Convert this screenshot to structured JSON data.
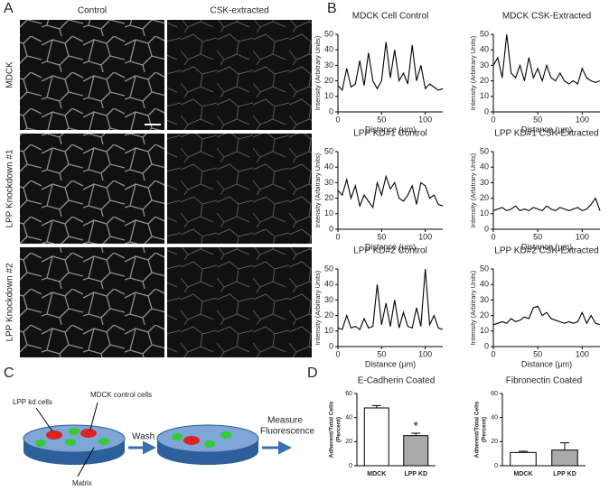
{
  "figure": {
    "panel_labels": [
      "A",
      "B",
      "C",
      "D"
    ],
    "micrographs": {
      "columns": [
        "Control",
        "CSK-extracted"
      ],
      "rows": [
        "MDCK",
        "LPP Knockdown #1",
        "LPP Knockdown #2"
      ]
    },
    "schematic": {
      "labels": [
        "LPP kd cells",
        "MDCK control cells",
        "Matrix",
        "Wash",
        "Measure",
        "Fluorescence"
      ]
    }
  },
  "chart_data": [
    {
      "type": "line",
      "title": "MDCK Cell Control",
      "x_label": "Distance (µm)",
      "y_label": "Intensity (Arbitrary Units)",
      "xlim": [
        0,
        120
      ],
      "xticks": [
        0,
        50,
        100
      ],
      "ylim": [
        0,
        50
      ],
      "yticks": [
        0,
        10,
        20,
        30,
        40,
        50
      ],
      "x": [
        0,
        5,
        10,
        15,
        20,
        25,
        30,
        35,
        40,
        45,
        50,
        55,
        60,
        65,
        70,
        75,
        80,
        85,
        90,
        95,
        100,
        105,
        110,
        115,
        120
      ],
      "series": [
        {
          "color": "#000000",
          "values": [
            17,
            14,
            28,
            16,
            18,
            33,
            17,
            38,
            20,
            15,
            20,
            45,
            22,
            40,
            20,
            25,
            18,
            43,
            20,
            30,
            15,
            18,
            16,
            14,
            15
          ]
        }
      ]
    },
    {
      "type": "line",
      "title": "MDCK CSK-Extracted",
      "x_label": "Distance (µm)",
      "y_label": "Intensity (Arbitrary Units)",
      "xlim": [
        0,
        120
      ],
      "xticks": [
        0,
        50,
        100
      ],
      "ylim": [
        0,
        50
      ],
      "yticks": [
        0,
        10,
        20,
        30,
        40,
        50
      ],
      "x": [
        0,
        5,
        10,
        15,
        20,
        25,
        30,
        35,
        40,
        45,
        50,
        55,
        60,
        65,
        70,
        75,
        80,
        85,
        90,
        95,
        100,
        105,
        110,
        115,
        120
      ],
      "series": [
        {
          "color": "#000000",
          "values": [
            30,
            35,
            22,
            50,
            25,
            22,
            30,
            20,
            35,
            22,
            28,
            20,
            30,
            22,
            20,
            25,
            20,
            18,
            20,
            18,
            28,
            22,
            20,
            19,
            20
          ]
        }
      ]
    },
    {
      "type": "line",
      "title": "LPP KD#1  Control",
      "x_label": "Distance (µm)",
      "y_label": "Intensity (Arbitrary Units)",
      "xlim": [
        0,
        120
      ],
      "xticks": [
        0,
        50,
        100
      ],
      "ylim": [
        0,
        50
      ],
      "yticks": [
        0,
        10,
        20,
        30,
        40,
        50
      ],
      "x": [
        0,
        5,
        10,
        15,
        20,
        25,
        30,
        35,
        40,
        45,
        50,
        55,
        60,
        65,
        70,
        75,
        80,
        85,
        90,
        95,
        100,
        105,
        110,
        115,
        120
      ],
      "series": [
        {
          "color": "#000000",
          "values": [
            25,
            22,
            32,
            20,
            28,
            15,
            22,
            18,
            14,
            30,
            22,
            34,
            26,
            30,
            20,
            18,
            22,
            28,
            16,
            30,
            28,
            20,
            22,
            16,
            15
          ]
        }
      ]
    },
    {
      "type": "line",
      "title": "LPP KD#1 CSK-Extracted",
      "x_label": "Distance (µm)",
      "y_label": "Intensity (Arbitrary Units)",
      "xlim": [
        0,
        120
      ],
      "xticks": [
        0,
        50,
        100
      ],
      "ylim": [
        0,
        50
      ],
      "yticks": [
        0,
        10,
        20,
        30,
        40,
        50
      ],
      "x": [
        0,
        5,
        10,
        15,
        20,
        25,
        30,
        35,
        40,
        45,
        50,
        55,
        60,
        65,
        70,
        75,
        80,
        85,
        90,
        95,
        100,
        105,
        110,
        115,
        120
      ],
      "series": [
        {
          "color": "#000000",
          "values": [
            12,
            13,
            14,
            12,
            13,
            15,
            12,
            13,
            12,
            14,
            13,
            12,
            15,
            13,
            12,
            14,
            13,
            12,
            13,
            14,
            12,
            13,
            16,
            20,
            12
          ]
        }
      ]
    },
    {
      "type": "line",
      "title": "LPP KD#2  Control",
      "x_label": "Distance (µm)",
      "y_label": "Intensity (Arbitrary Units)",
      "xlim": [
        0,
        120
      ],
      "xticks": [
        0,
        50,
        100
      ],
      "ylim": [
        0,
        50
      ],
      "yticks": [
        0,
        10,
        20,
        30,
        40,
        50
      ],
      "x": [
        0,
        5,
        10,
        15,
        20,
        25,
        30,
        35,
        40,
        45,
        50,
        55,
        60,
        65,
        70,
        75,
        80,
        85,
        90,
        95,
        100,
        105,
        110,
        115,
        120
      ],
      "series": [
        {
          "color": "#000000",
          "values": [
            12,
            11,
            20,
            12,
            13,
            11,
            18,
            12,
            13,
            40,
            14,
            28,
            13,
            30,
            12,
            22,
            13,
            12,
            25,
            13,
            50,
            14,
            20,
            12,
            11
          ]
        }
      ]
    },
    {
      "type": "line",
      "title": "LPP KD#2 CSK-Extracted",
      "x_label": "Distance (µm)",
      "y_label": "Intensity (Arbitrary Units)",
      "xlim": [
        0,
        120
      ],
      "xticks": [
        0,
        50,
        100
      ],
      "ylim": [
        0,
        50
      ],
      "yticks": [
        0,
        10,
        20,
        30,
        40,
        50
      ],
      "x": [
        0,
        5,
        10,
        15,
        20,
        25,
        30,
        35,
        40,
        45,
        50,
        55,
        60,
        65,
        70,
        75,
        80,
        85,
        90,
        95,
        100,
        105,
        110,
        115,
        120
      ],
      "series": [
        {
          "color": "#000000",
          "values": [
            14,
            15,
            16,
            15,
            18,
            16,
            17,
            19,
            18,
            25,
            26,
            20,
            22,
            18,
            17,
            16,
            15,
            16,
            15,
            16,
            22,
            15,
            20,
            15,
            14
          ]
        }
      ]
    },
    {
      "type": "bar",
      "title": "E-Cadherin Coated",
      "y_label": [
        "Adherent/Total Cells",
        "(Percent)"
      ],
      "categories": [
        "MDCK",
        "LPP KD"
      ],
      "values": [
        48,
        25
      ],
      "errors": [
        2,
        2
      ],
      "colors": [
        "#ffffff",
        "#aaaaaa"
      ],
      "ylim": [
        0,
        60
      ],
      "yticks": [
        0,
        20,
        40,
        60
      ],
      "annotation": "*"
    },
    {
      "type": "bar",
      "title": "Fibronectin Coated",
      "y_label": [
        "Adherent/Total Cells",
        "(Percent)"
      ],
      "categories": [
        "MDCK",
        "LPP KD"
      ],
      "values": [
        11,
        13
      ],
      "errors": [
        1,
        6
      ],
      "colors": [
        "#ffffff",
        "#aaaaaa"
      ],
      "ylim": [
        0,
        60
      ],
      "yticks": [
        0,
        20,
        40,
        60
      ]
    }
  ]
}
